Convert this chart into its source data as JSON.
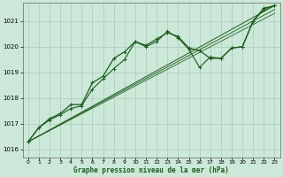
{
  "title": "Graphe pression niveau de la mer (hPa)",
  "bg_color": "#cce8d8",
  "grid_color": "#aacabb",
  "line_color": "#1a5c1a",
  "xlim": [
    -0.5,
    23.5
  ],
  "ylim": [
    1015.7,
    1021.7
  ],
  "yticks": [
    1016,
    1017,
    1018,
    1019,
    1020,
    1021
  ],
  "xticks": [
    0,
    1,
    2,
    3,
    4,
    5,
    6,
    7,
    8,
    9,
    10,
    11,
    12,
    13,
    14,
    15,
    16,
    17,
    18,
    19,
    20,
    21,
    22,
    23
  ],
  "series_main": {
    "x": [
      0,
      1,
      2,
      3,
      4,
      5,
      6,
      7,
      8,
      9,
      10,
      11,
      12,
      13,
      14,
      15,
      16,
      17,
      18,
      19,
      20,
      21,
      22,
      23
    ],
    "y": [
      1016.3,
      1016.85,
      1017.2,
      1017.4,
      1017.75,
      1017.75,
      1018.6,
      1018.85,
      1019.55,
      1019.8,
      1020.2,
      1020.05,
      1020.3,
      1020.55,
      1020.4,
      1019.95,
      1019.85,
      1019.55,
      1019.55,
      1019.95,
      1020.0,
      1021.0,
      1021.5,
      1021.6
    ]
  },
  "series_second": {
    "x": [
      0,
      1,
      2,
      3,
      4,
      5,
      6,
      7,
      8,
      9,
      10,
      11,
      12,
      13,
      14,
      15,
      16,
      17,
      18,
      19,
      20,
      21,
      22,
      23
    ],
    "y": [
      1016.3,
      1016.85,
      1017.15,
      1017.35,
      1017.6,
      1017.7,
      1018.35,
      1018.75,
      1019.15,
      1019.5,
      1020.2,
      1020.0,
      1020.2,
      1020.6,
      1020.35,
      1019.9,
      1019.2,
      1019.6,
      1019.55,
      1019.95,
      1020.0,
      1021.0,
      1021.45,
      1021.6
    ]
  },
  "line_diag1": {
    "x": [
      0,
      23
    ],
    "y": [
      1016.3,
      1021.6
    ]
  },
  "line_diag2": {
    "x": [
      0,
      23
    ],
    "y": [
      1016.3,
      1021.45
    ]
  },
  "line_diag3": {
    "x": [
      0,
      23
    ],
    "y": [
      1016.3,
      1021.3
    ]
  }
}
